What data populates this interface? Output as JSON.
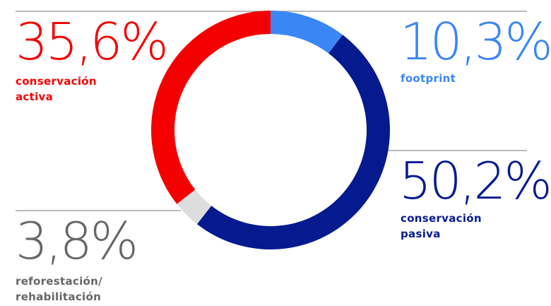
{
  "chart_data": {
    "type": "pie",
    "donut": true,
    "start": "top, clockwise",
    "slices": [
      {
        "key": "footprint",
        "value": 10.3,
        "value_label": "10,3%",
        "label_lines": [
          "footprint"
        ],
        "color": "#3B86F5"
      },
      {
        "key": "pasiva",
        "value": 50.2,
        "value_label": "50,2%",
        "label_lines": [
          "conservación",
          "pasiva"
        ],
        "color": "#061A8F"
      },
      {
        "key": "refor",
        "value": 3.8,
        "value_label": "3,8%",
        "label_lines": [
          "reforestación/",
          "rehabilitación"
        ],
        "color": "#DDDDDD"
      },
      {
        "key": "activa",
        "value": 35.6,
        "value_label": "35,6%",
        "label_lines": [
          "conservación",
          "activa"
        ],
        "color": "#F50000"
      }
    ],
    "text_colors": {
      "footprint": "#3B86F5",
      "pasiva": "#061A8F",
      "refor": "#666666",
      "activa": "#F50000"
    },
    "connector_color": "#7A7A7A"
  }
}
